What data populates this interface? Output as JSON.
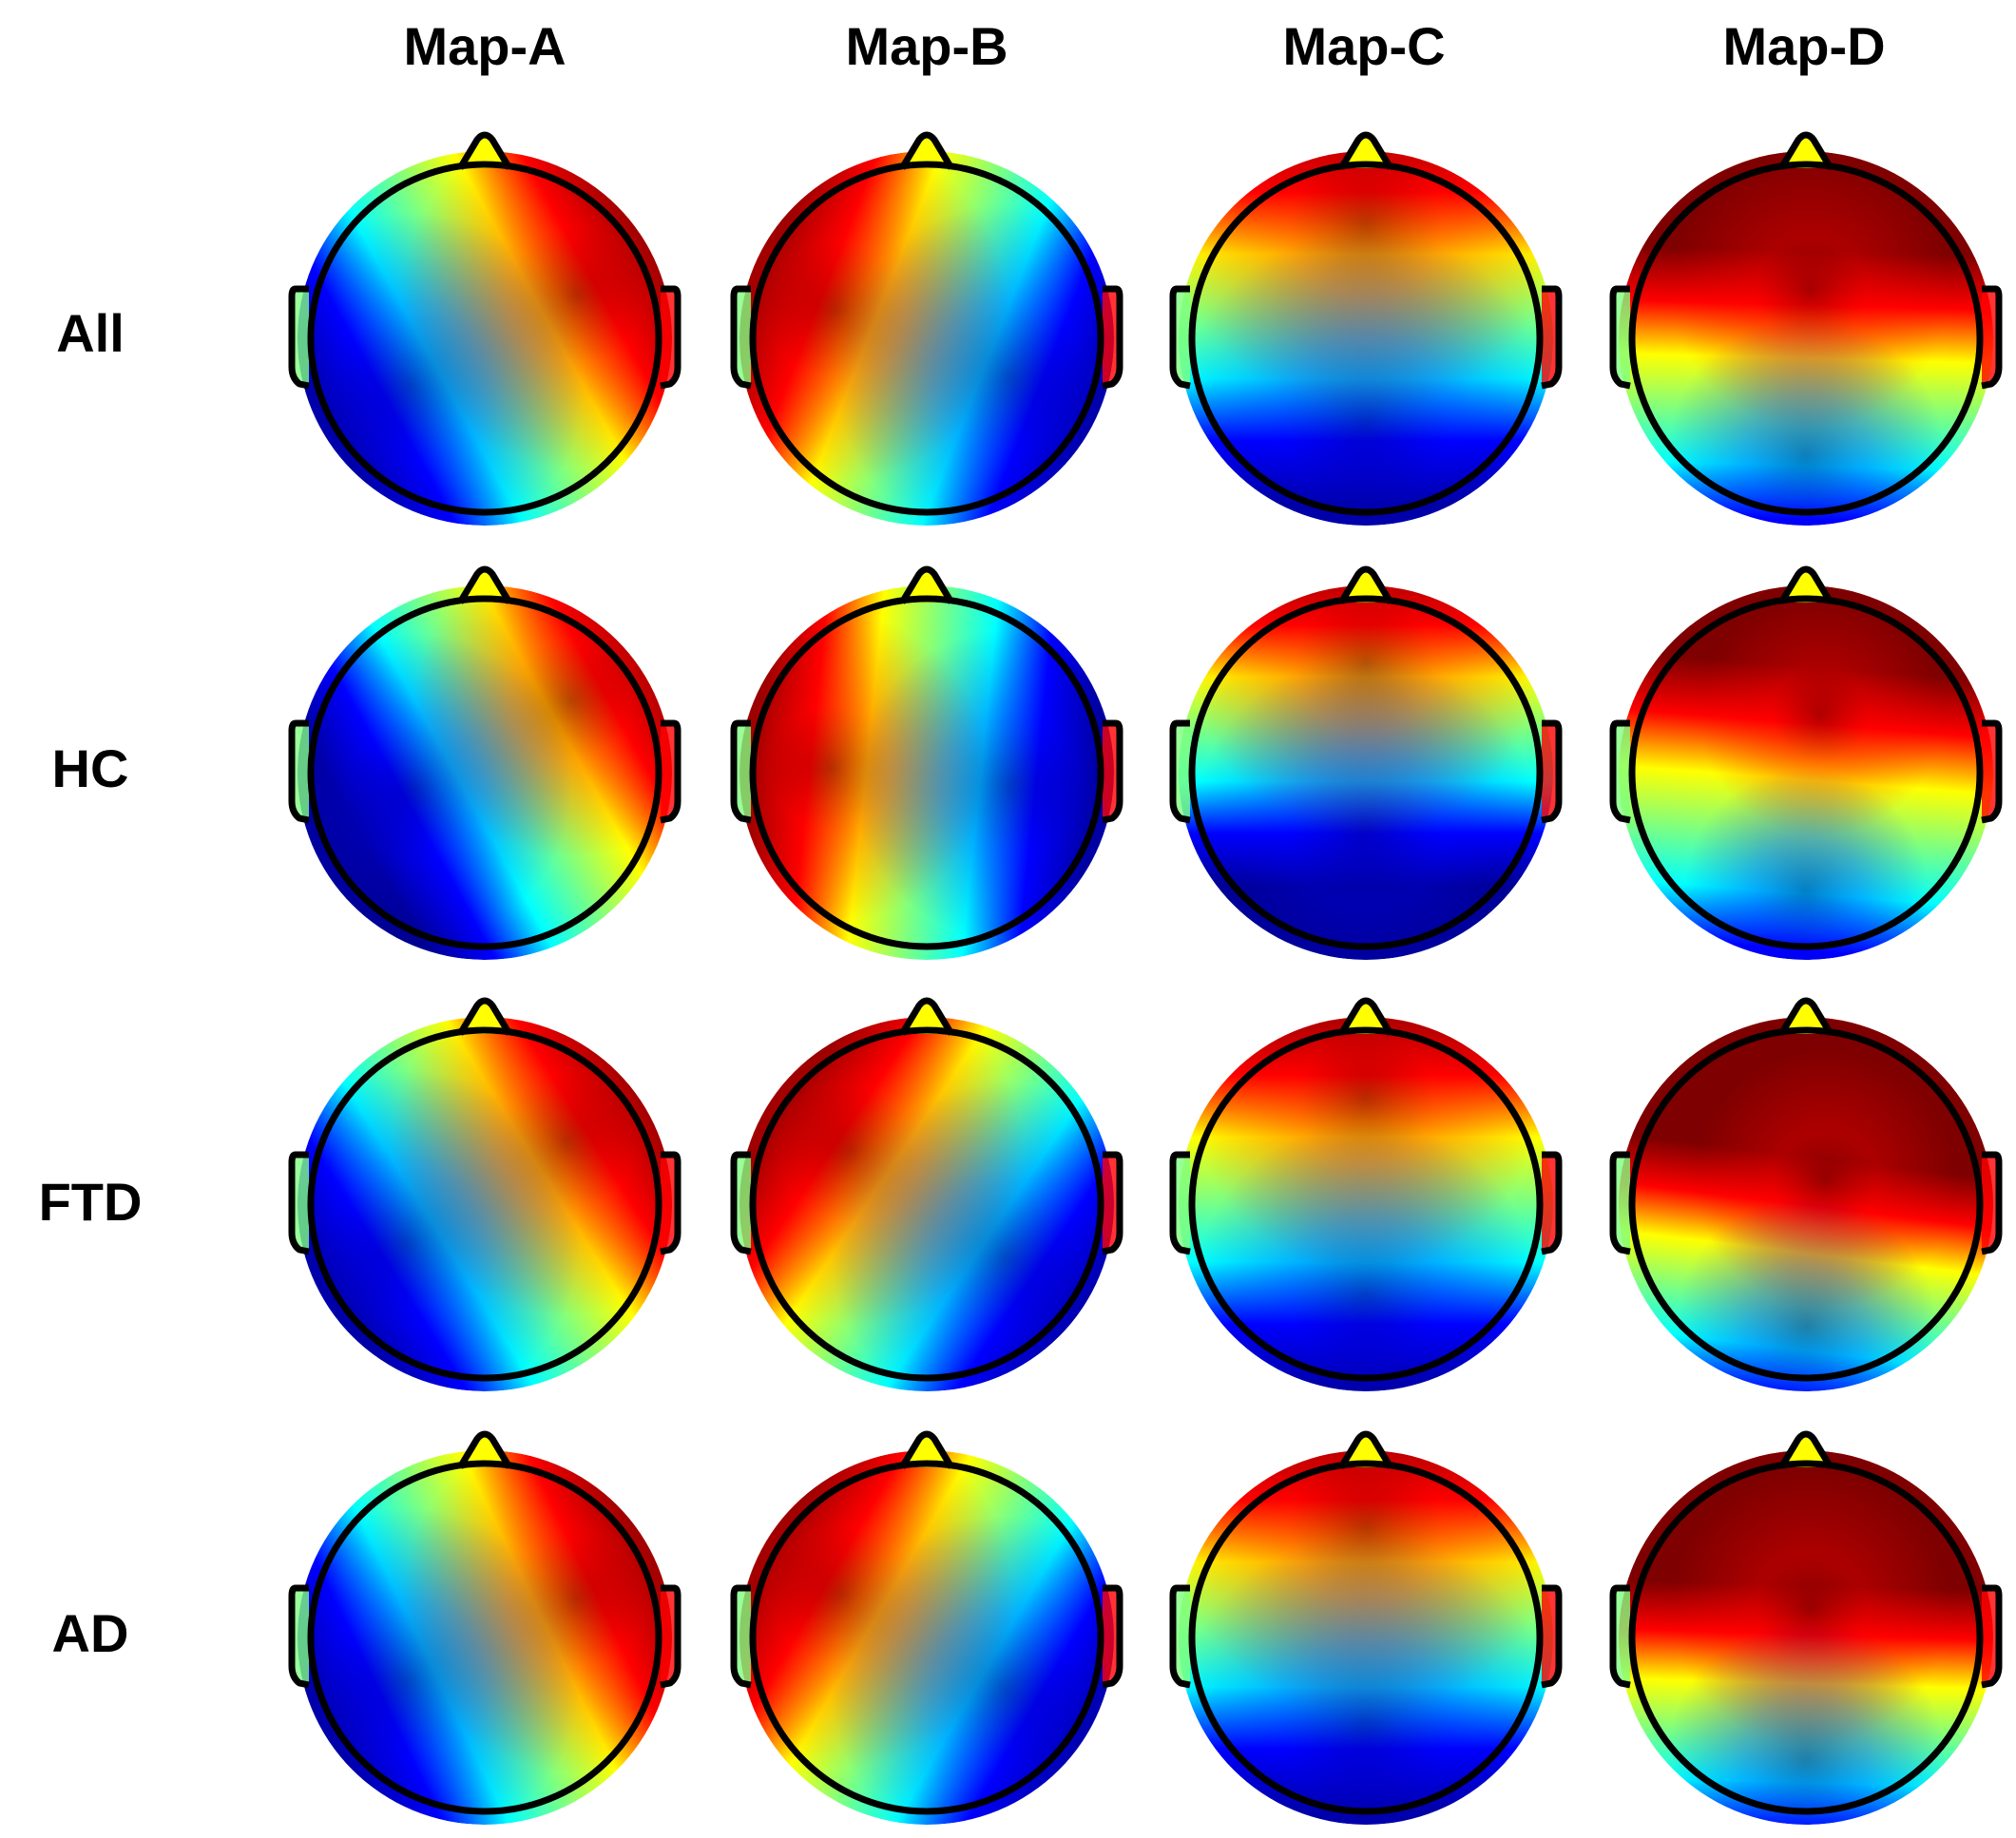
{
  "figure": {
    "columns": [
      "Map-A",
      "Map-B",
      "Map-C",
      "Map-D"
    ],
    "rows": [
      "All",
      "HC",
      "FTD",
      "AD"
    ],
    "colormap": [
      "#00008f",
      "#0000ff",
      "#00ffff",
      "#7fff7f",
      "#ffff00",
      "#ff0000",
      "#7f0000"
    ],
    "outline_color": "#000000"
  }
}
